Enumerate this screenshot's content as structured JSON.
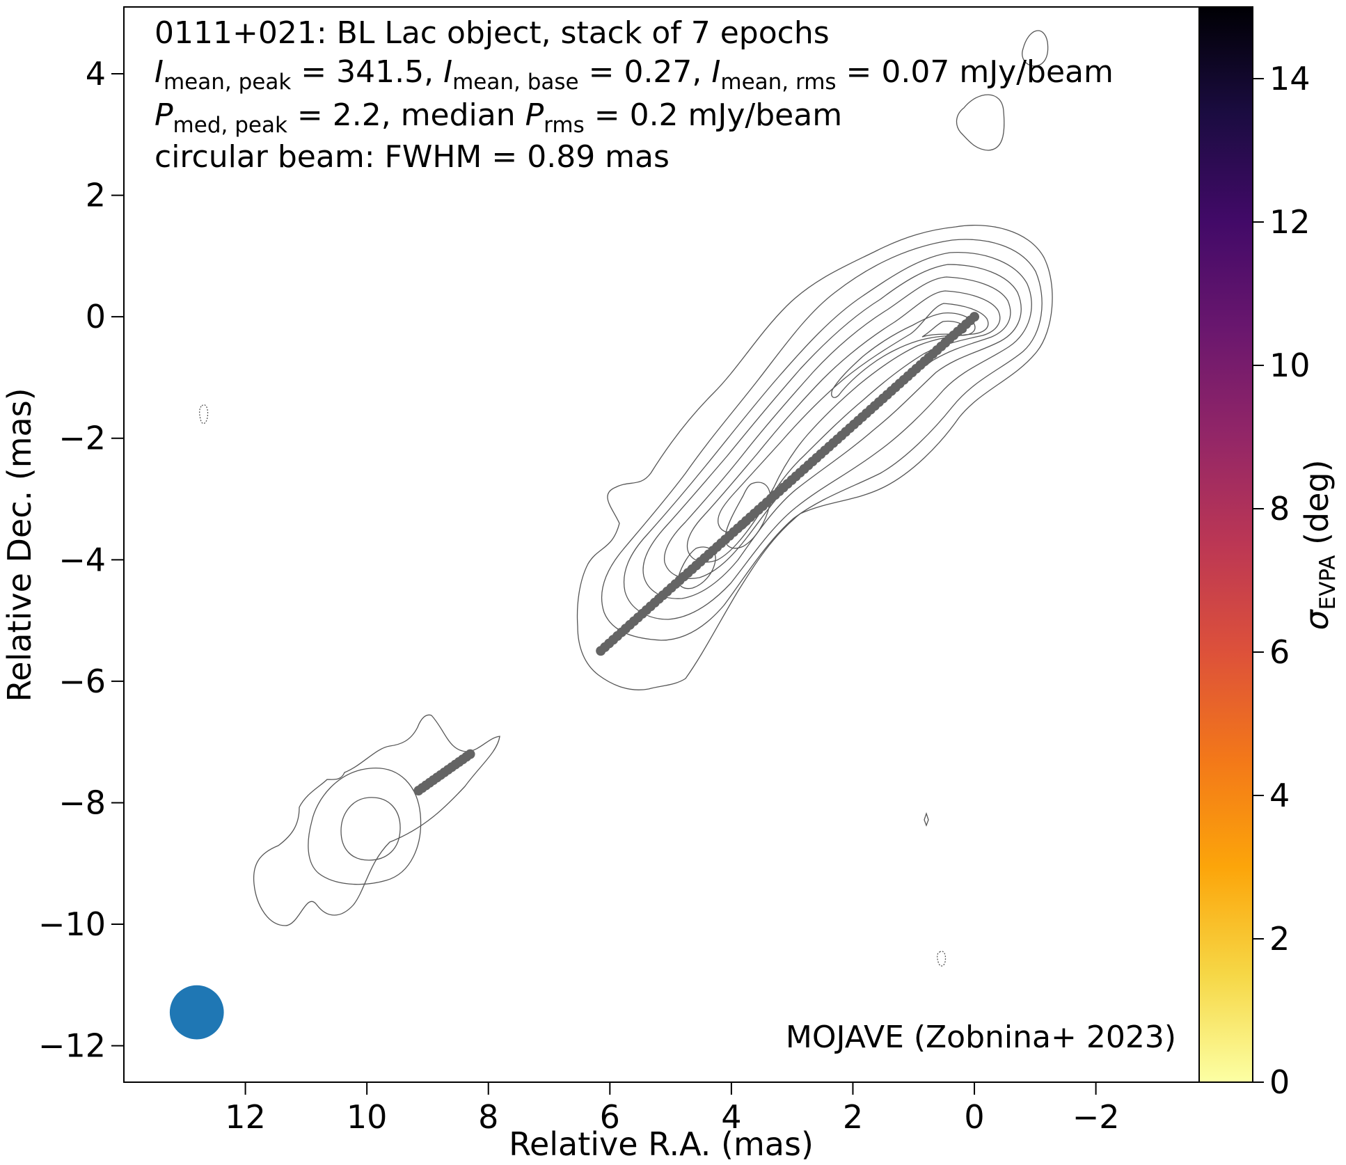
{
  "chart_data": {
    "type": "contour",
    "annotation": {
      "line1": "0111+021: BL Lac object, stack of 7 epochs",
      "line2": {
        "sym": "I",
        "sub_peak": "mean, peak",
        "val_peak": " = 341.5, ",
        "sub_base": "mean, base",
        "val_base": " = 0.27, ",
        "sub_rms": "mean, rms",
        "val_rms": " = 0.07 mJy/beam"
      },
      "line3": {
        "sym": "P",
        "sub_peak": "med, peak",
        "val_peak": " = 2.2, median ",
        "sub_rms": "rms",
        "val_rms": " = 0.2 mJy/beam"
      },
      "line4": "circular beam: FWHM = 0.89 mas"
    },
    "credit": "MOJAVE (Zobnina+ 2023)",
    "xlabel": "Relative R.A. (mas)",
    "ylabel": "Relative Dec. (mas)",
    "xlim": [
      14.0,
      -3.7
    ],
    "ylim": [
      -12.6,
      5.1
    ],
    "xticks": [
      12,
      10,
      8,
      6,
      4,
      2,
      0,
      -2
    ],
    "xtick_labels": [
      "12",
      "10",
      "8",
      "6",
      "4",
      "2",
      "0",
      "−2"
    ],
    "yticks": [
      4,
      2,
      0,
      -2,
      -4,
      -6,
      -8,
      -10,
      -12
    ],
    "ytick_labels": [
      "4",
      "2",
      "0",
      "−2",
      "−4",
      "−6",
      "−8",
      "−10",
      "−12"
    ],
    "colorbar": {
      "label_symbol": "σ",
      "label_sub": "EVPA",
      "label_unit": " (deg)",
      "min": 0,
      "max": 15,
      "ticks": [
        0,
        2,
        4,
        6,
        8,
        10,
        12,
        14
      ],
      "tick_labels": [
        "0",
        "2",
        "4",
        "6",
        "8",
        "10",
        "12",
        "14"
      ],
      "colormap": "inferno_r",
      "stops": [
        "#fcffa4",
        "#f6d746",
        "#fca50a",
        "#f37819",
        "#dd513a",
        "#bc3754",
        "#932667",
        "#6a176e",
        "#420a68",
        "#1b0c41",
        "#000004"
      ]
    },
    "ridgeline_main": {
      "from": [
        6.15,
        -5.5
      ],
      "to": [
        0.0,
        0.0
      ],
      "color": "#646464"
    },
    "ridgeline_secondary": {
      "from": [
        9.15,
        -7.8
      ],
      "to": [
        8.3,
        -7.2
      ],
      "color": "#646464"
    },
    "beam": {
      "fwhm_mas": 0.89,
      "center": [
        12.8,
        -11.45
      ],
      "color": "#1f77b4"
    },
    "core_peak": [
      0.0,
      0.0
    ],
    "secondary_peak": [
      9.9,
      -8.4
    ]
  }
}
